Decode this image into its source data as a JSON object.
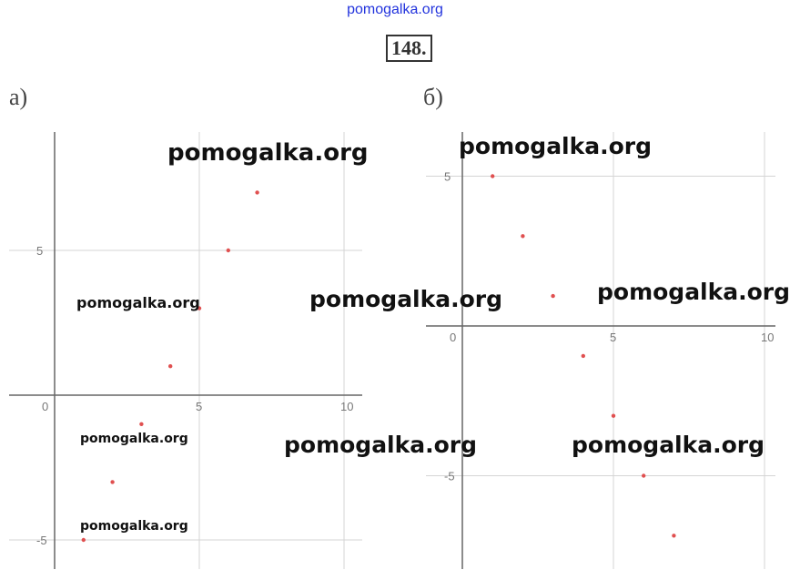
{
  "header": {
    "watermark": "pomogalka.org",
    "problem_number": "148."
  },
  "watermarks": [
    "pomogalka.org",
    "pomogalka.org",
    "pomogalka.org",
    "pomogalka.org",
    "pomogalka.org",
    "pomogalka.org",
    "pomogalka.org",
    "pomogalka.org",
    "pomogalka.org"
  ],
  "chart_data": [
    {
      "type": "scatter",
      "label": "а)",
      "xlim": [
        -1.5,
        10.5
      ],
      "ylim": [
        -6,
        9
      ],
      "xticks": [
        0,
        5,
        10
      ],
      "yticks": [
        5,
        -5
      ],
      "tick_labels_x": [
        "0",
        "5",
        "10"
      ],
      "tick_labels_y": [
        "5",
        "-5"
      ],
      "grid": true,
      "color": "#e05050",
      "x": [
        1,
        2,
        3,
        4,
        5,
        6,
        7
      ],
      "y": [
        -5,
        -3,
        -1,
        1,
        3,
        5,
        7
      ]
    },
    {
      "type": "scatter",
      "label": "б)",
      "xlim": [
        -1.5,
        10.5
      ],
      "ylim": [
        -8,
        5.5
      ],
      "xticks": [
        0,
        5,
        10
      ],
      "yticks": [
        5,
        -5
      ],
      "tick_labels_x": [
        "0",
        "5",
        "10"
      ],
      "tick_labels_y": [
        "5",
        "-5"
      ],
      "grid": true,
      "color": "#e05050",
      "x": [
        1,
        2,
        3,
        4,
        5,
        6,
        7
      ],
      "y": [
        5,
        3,
        1,
        -1,
        -3,
        -5,
        -7
      ]
    }
  ]
}
